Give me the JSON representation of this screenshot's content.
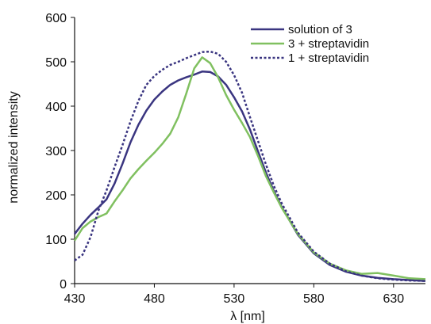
{
  "chart_data": {
    "type": "line",
    "title": "",
    "xlabel": "λ [nm]",
    "ylabel": "normalized intensity",
    "xlim": [
      430,
      650
    ],
    "ylim": [
      0,
      600
    ],
    "xticks": [
      430,
      480,
      530,
      580,
      630
    ],
    "yticks": [
      0,
      100,
      200,
      300,
      400,
      500,
      600
    ],
    "grid": false,
    "legend_position": "top-right",
    "series": [
      {
        "name": "solution of 3",
        "color": "#3a3580",
        "style": "solid",
        "x": [
          430,
          435,
          440,
          445,
          450,
          455,
          460,
          465,
          470,
          475,
          480,
          485,
          490,
          495,
          500,
          505,
          510,
          515,
          520,
          525,
          530,
          535,
          540,
          545,
          550,
          555,
          560,
          570,
          580,
          590,
          600,
          610,
          620,
          630,
          640,
          650
        ],
        "y": [
          112,
          135,
          155,
          172,
          190,
          225,
          270,
          318,
          358,
          390,
          415,
          433,
          448,
          458,
          465,
          471,
          478,
          477,
          467,
          448,
          420,
          388,
          347,
          298,
          250,
          208,
          172,
          110,
          68,
          42,
          27,
          18,
          13,
          10,
          8,
          6
        ]
      },
      {
        "name": "3 + streptavidin",
        "color": "#80c060",
        "style": "solid",
        "x": [
          430,
          435,
          440,
          445,
          450,
          455,
          460,
          465,
          470,
          475,
          480,
          485,
          490,
          495,
          500,
          505,
          510,
          515,
          520,
          525,
          530,
          535,
          540,
          545,
          550,
          555,
          560,
          570,
          580,
          590,
          600,
          610,
          620,
          630,
          640,
          650
        ],
        "y": [
          97,
          125,
          140,
          150,
          158,
          185,
          210,
          237,
          258,
          277,
          295,
          315,
          338,
          375,
          428,
          485,
          510,
          497,
          465,
          425,
          392,
          362,
          330,
          288,
          242,
          205,
          170,
          112,
          70,
          45,
          30,
          22,
          24,
          18,
          12,
          10
        ]
      },
      {
        "name": "1 + streptavidin",
        "color": "#3a3580",
        "style": "dashed",
        "x": [
          430,
          435,
          440,
          445,
          450,
          455,
          460,
          465,
          470,
          475,
          480,
          485,
          490,
          495,
          500,
          505,
          510,
          515,
          520,
          525,
          530,
          535,
          540,
          545,
          550,
          555,
          560,
          570,
          580,
          590,
          600,
          610,
          620,
          630,
          640,
          650
        ],
        "y": [
          52,
          65,
          105,
          165,
          210,
          262,
          312,
          365,
          412,
          448,
          468,
          482,
          493,
          500,
          508,
          515,
          522,
          523,
          518,
          500,
          470,
          430,
          375,
          322,
          268,
          220,
          180,
          115,
          72,
          45,
          28,
          18,
          12,
          9,
          7,
          6
        ]
      }
    ]
  }
}
